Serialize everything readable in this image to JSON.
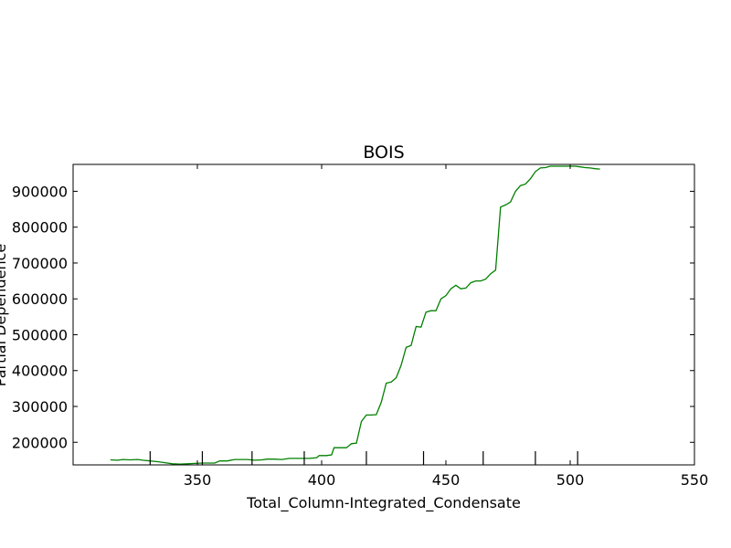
{
  "chart_data": {
    "type": "line",
    "title": "BOIS",
    "xlabel": "Total_Column-Integrated_Condensate",
    "ylabel": "Partial Dependence",
    "xlim": [
      300,
      550
    ],
    "ylim": [
      137000,
      975000
    ],
    "grid": false,
    "x_ticks": [
      350,
      400,
      450,
      500,
      550
    ],
    "y_ticks": [
      200000,
      300000,
      400000,
      500000,
      600000,
      700000,
      800000,
      900000
    ],
    "rug": [
      331,
      352,
      372,
      393,
      418,
      441,
      465,
      486,
      503
    ],
    "series": [
      {
        "color": "#008000",
        "x": [
          315,
          318,
          320,
          323,
          326,
          328,
          331,
          334,
          337,
          340,
          343,
          346,
          349,
          352,
          354,
          357,
          359,
          362,
          365,
          367,
          370,
          373,
          376,
          378,
          381,
          384,
          387,
          389,
          392,
          395,
          398,
          399,
          402,
          404,
          405,
          408,
          410,
          412,
          414,
          416,
          418,
          420,
          422,
          424,
          426,
          428,
          430,
          432,
          434,
          436,
          438,
          440,
          442,
          444,
          446,
          448,
          450,
          452,
          454,
          456,
          458,
          460,
          462,
          464,
          466,
          468,
          470,
          472,
          474,
          476,
          478,
          480,
          482,
          484,
          486,
          488,
          490,
          492,
          494,
          496,
          498,
          500,
          502,
          504,
          506,
          508,
          510,
          512
        ],
        "y": [
          151000,
          150000,
          152000,
          151000,
          152000,
          150000,
          148000,
          146000,
          143000,
          140000,
          139000,
          140000,
          141000,
          142000,
          142000,
          142000,
          148000,
          148000,
          152000,
          152000,
          152000,
          150000,
          151000,
          153000,
          153000,
          152000,
          155000,
          155000,
          155000,
          155000,
          157000,
          163000,
          163000,
          165000,
          185000,
          185000,
          185000,
          196000,
          198000,
          258000,
          276000,
          276000,
          277000,
          312000,
          365000,
          368000,
          380000,
          415000,
          465000,
          470000,
          523000,
          521000,
          563000,
          567000,
          567000,
          600000,
          609000,
          628000,
          638000,
          628000,
          630000,
          645000,
          650000,
          650000,
          655000,
          670000,
          680000,
          856000,
          862000,
          870000,
          900000,
          916000,
          920000,
          935000,
          955000,
          965000,
          966000,
          970000,
          970000,
          970000,
          970000,
          970000,
          970000,
          968000,
          966000,
          965000,
          963000,
          962000
        ]
      }
    ]
  }
}
